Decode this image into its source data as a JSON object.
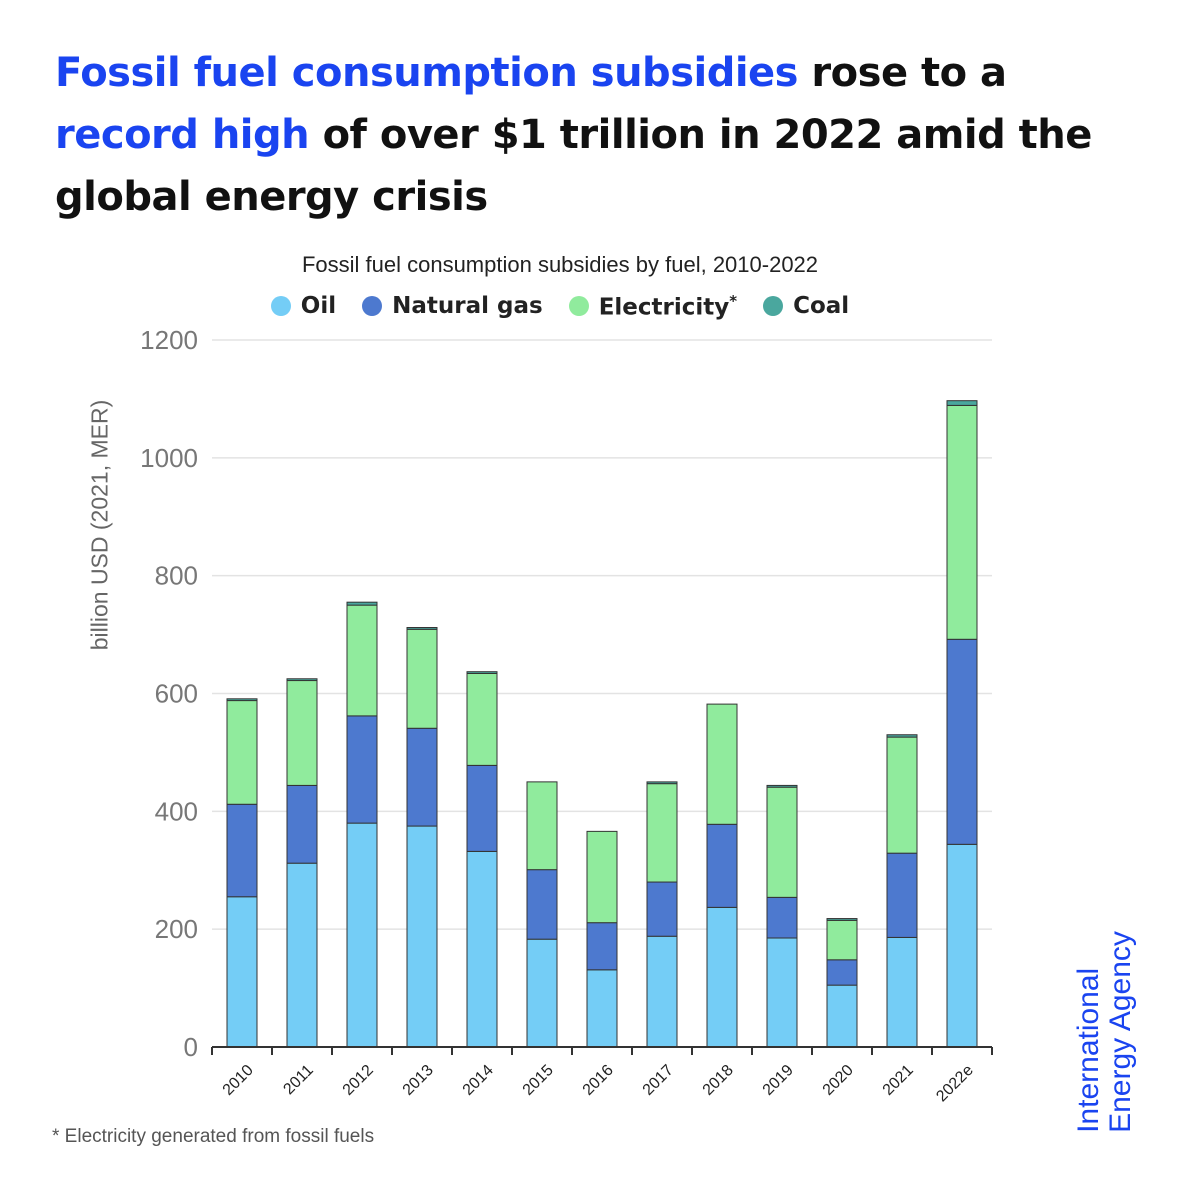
{
  "headline": {
    "part1": "Fossil fuel consumption subsidies",
    "part2": " rose to a ",
    "part3": "record high",
    "part4": " of over $1 trillion in 2022 amid the global energy crisis"
  },
  "legend": [
    {
      "name": "Oil",
      "color": "#74cdf6"
    },
    {
      "name": "Natural gas",
      "color": "#4d79cf"
    },
    {
      "name": "Electricity",
      "color": "#90eb9d",
      "marker": "*"
    },
    {
      "name": "Coal",
      "color": "#4aa79e"
    }
  ],
  "footnote": "* Electricity generated from fossil fuels",
  "logo": {
    "line1": "International",
    "line2": "Energy Agency"
  },
  "chart_data": {
    "type": "bar",
    "stacked": true,
    "title": "Fossil fuel consumption subsidies by fuel, 2010-2022",
    "ylabel": "billion USD (2021, MER)",
    "xlabel": "",
    "ylim": [
      0,
      1200
    ],
    "yticks": [
      0,
      200,
      400,
      600,
      800,
      1000,
      1200
    ],
    "grid": true,
    "legend_position": "top",
    "categories": [
      "2010",
      "2011",
      "2012",
      "2013",
      "2014",
      "2015",
      "2016",
      "2017",
      "2018",
      "2019",
      "2020",
      "2021",
      "2022e"
    ],
    "series": [
      {
        "name": "Oil",
        "color": "#74cdf6",
        "values": [
          255,
          312,
          380,
          375,
          332,
          183,
          131,
          188,
          237,
          185,
          105,
          186,
          344
        ]
      },
      {
        "name": "Natural gas",
        "color": "#4d79cf",
        "values": [
          157,
          132,
          182,
          166,
          146,
          118,
          80,
          92,
          141,
          69,
          43,
          143,
          348
        ]
      },
      {
        "name": "Electricity",
        "color": "#90eb9d",
        "values": [
          176,
          178,
          188,
          168,
          156,
          149,
          155,
          167,
          204,
          187,
          67,
          197,
          397
        ]
      },
      {
        "name": "Coal",
        "color": "#4aa79e",
        "values": [
          3,
          3,
          5,
          3,
          3,
          0,
          0,
          3,
          0,
          3,
          3,
          4,
          8
        ]
      }
    ]
  }
}
